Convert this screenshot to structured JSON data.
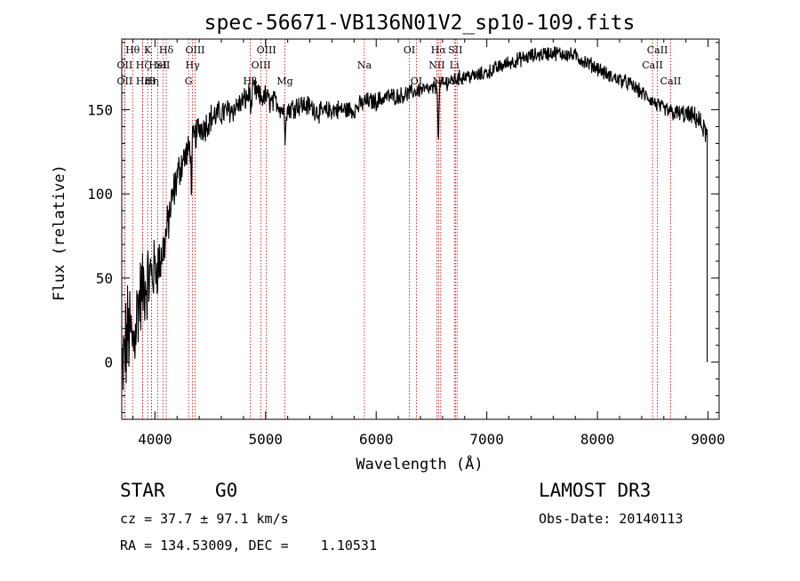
{
  "chart_data": {
    "type": "line",
    "title": "spec-56671-VB136N01V2_sp10-109.fits",
    "xlabel": "Wavelength (Å)",
    "ylabel": "Flux (relative)",
    "xlim": [
      3700,
      9100
    ],
    "ylim": [
      -34,
      192
    ],
    "xticks": [
      4000,
      5000,
      6000,
      7000,
      8000,
      9000
    ],
    "yticks": [
      0,
      50,
      100,
      150
    ],
    "grid": false,
    "colors": {
      "spectrum": "#000000",
      "lines": "#cc0000",
      "axes": "#000000"
    },
    "spectrum_anchors": {
      "x": [
        3700,
        3760,
        3800,
        3850,
        3900,
        3950,
        4000,
        4050,
        4100,
        4150,
        4200,
        4250,
        4300,
        4350,
        4400,
        4450,
        4500,
        4600,
        4700,
        4800,
        4860,
        4900,
        4950,
        5000,
        5050,
        5100,
        5150,
        5200,
        5300,
        5400,
        5500,
        5600,
        5700,
        5800,
        5900,
        6000,
        6100,
        6200,
        6300,
        6400,
        6500,
        6560,
        6600,
        6700,
        6800,
        6900,
        7000,
        7100,
        7200,
        7300,
        7400,
        7500,
        7600,
        7700,
        7800,
        7900,
        8000,
        8100,
        8200,
        8300,
        8400,
        8500,
        8600,
        8700,
        8800,
        8900,
        8990
      ],
      "y": [
        -10,
        20,
        10,
        35,
        45,
        50,
        55,
        60,
        75,
        95,
        110,
        120,
        125,
        132,
        140,
        140,
        145,
        148,
        150,
        155,
        160,
        162,
        157,
        158,
        154,
        155,
        150,
        150,
        153,
        152,
        148,
        150,
        150,
        150,
        155,
        155,
        158,
        158,
        160,
        162,
        162,
        164,
        165,
        168,
        170,
        170,
        172,
        175,
        178,
        180,
        182,
        183,
        184,
        183,
        182,
        178,
        175,
        170,
        168,
        165,
        160,
        155,
        150,
        148,
        147,
        145,
        135
      ]
    },
    "noise_amplitude_anchors": {
      "x": [
        3700,
        3900,
        4100,
        4300,
        4600,
        5200,
        6500,
        8500,
        9000
      ],
      "y": [
        30,
        22,
        12,
        9,
        7,
        6,
        4,
        4,
        6
      ]
    },
    "absorption_dips": [
      {
        "x": 4330,
        "depth": 30
      },
      {
        "x": 4870,
        "depth": 14
      },
      {
        "x": 5175,
        "depth": 18
      },
      {
        "x": 6563,
        "depth": 38
      }
    ],
    "final_drop": {
      "x": 8992,
      "from": 130,
      "to": 0
    },
    "line_markers": [
      {
        "x": 3798,
        "label": "Hθ",
        "row": 1
      },
      {
        "x": 3727,
        "label": "OII",
        "row": 2
      },
      {
        "x": 3727,
        "label": "OII",
        "row": 3
      },
      {
        "x": 3889,
        "label": "Hζ",
        "row": 2
      },
      {
        "x": 3889,
        "label": "Hε",
        "row": 3
      },
      {
        "x": 3934,
        "label": "K",
        "row": 1
      },
      {
        "x": 3970,
        "label": "H",
        "row": 3
      },
      {
        "x": 3970,
        "label": "Hη",
        "row": 3
      },
      {
        "x": 4026,
        "label": "HeI",
        "row": 2
      },
      {
        "x": 4072,
        "label": "SII",
        "row": 2
      },
      {
        "x": 4102,
        "label": "Hδ",
        "row": 1
      },
      {
        "x": 4304,
        "label": "G",
        "row": 3
      },
      {
        "x": 4340,
        "label": "Hγ",
        "row": 2
      },
      {
        "x": 4363,
        "label": "OIII",
        "row": 1
      },
      {
        "x": 4861,
        "label": "Hβ",
        "row": 3
      },
      {
        "x": 4959,
        "label": "OIII",
        "row": 2
      },
      {
        "x": 5007,
        "label": "OIII",
        "row": 1
      },
      {
        "x": 5175,
        "label": "Mg",
        "row": 3
      },
      {
        "x": 5893,
        "label": "Na",
        "row": 2
      },
      {
        "x": 6300,
        "label": "OI",
        "row": 1
      },
      {
        "x": 6363,
        "label": "OI",
        "row": 3
      },
      {
        "x": 6548,
        "label": "NII",
        "row": 2
      },
      {
        "x": 6563,
        "label": "Hα",
        "row": 1
      },
      {
        "x": 6583,
        "label": "NII",
        "row": 3
      },
      {
        "x": 6707,
        "label": "Li",
        "row": 2
      },
      {
        "x": 6716,
        "label": "SII",
        "row": 1
      },
      {
        "x": 6731,
        "label": "SII",
        "row": 3
      },
      {
        "x": 8498,
        "label": "CaII",
        "row": 2
      },
      {
        "x": 8542,
        "label": "CaII",
        "row": 1
      },
      {
        "x": 8662,
        "label": "CaII",
        "row": 3
      }
    ]
  },
  "info": {
    "class": "STAR",
    "subclass": "G0",
    "survey": "LAMOST DR3",
    "cz": "cz = 37.7 ± 97.1 km/s",
    "obs_date": "Obs-Date: 20140113",
    "coords": "RA = 134.53009, DEC =    1.10531"
  }
}
